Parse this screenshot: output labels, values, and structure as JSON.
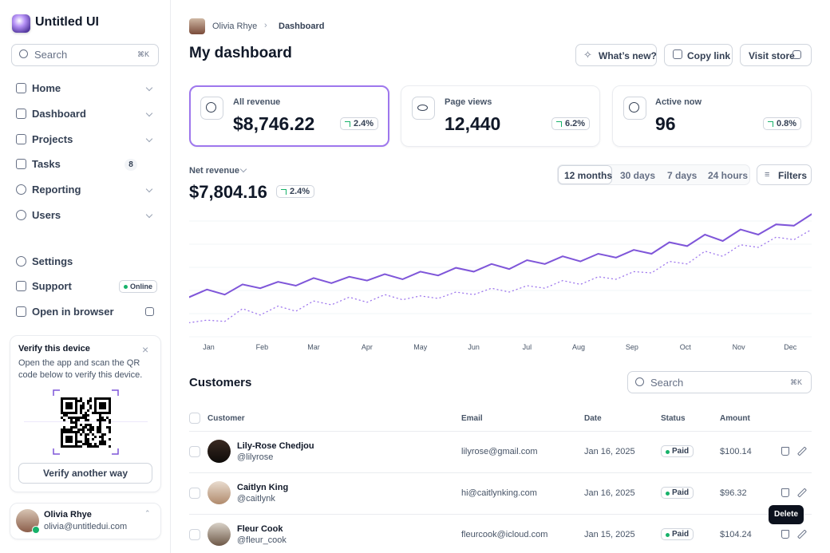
{
  "sidebar": {
    "brand": "Untitled UI",
    "search": {
      "placeholder": "Search",
      "shortcut": "⌘K"
    },
    "nav": [
      {
        "label": "Home"
      },
      {
        "label": "Dashboard"
      },
      {
        "label": "Projects"
      },
      {
        "label": "Tasks",
        "badge": "8"
      },
      {
        "label": "Reporting"
      },
      {
        "label": "Users"
      }
    ],
    "footer_nav": [
      {
        "label": "Settings"
      },
      {
        "label": "Support",
        "badge": "Online"
      },
      {
        "label": "Open in browser"
      }
    ],
    "verify_card": {
      "title": "Verify this device",
      "text": "Open the app and scan the QR code below to verify this device.",
      "button": "Verify another way"
    },
    "user": {
      "name": "Olivia Rhye",
      "email": "olivia@untitledui.com"
    }
  },
  "header": {
    "breadcrumb": [
      "Olivia Rhye",
      "Dashboard"
    ],
    "title": "My dashboard",
    "actions": [
      "What’s new?",
      "Copy link",
      "Visit store"
    ]
  },
  "stats": [
    {
      "label": "All revenue",
      "value": "$8,746.22",
      "change": "2.4%"
    },
    {
      "label": "Page views",
      "value": "12,440",
      "change": "6.2%"
    },
    {
      "label": "Active now",
      "value": "96",
      "change": "0.8%"
    }
  ],
  "revenue": {
    "label": "Net revenue",
    "value": "$7,804.16",
    "change": "2.4%",
    "ranges": [
      "12 months",
      "30 days",
      "7 days",
      "24 hours"
    ],
    "filters": "Filters"
  },
  "chart_data": {
    "type": "line",
    "x": [
      0,
      1,
      2,
      3,
      4,
      5,
      6,
      7,
      8,
      9,
      10,
      11,
      12,
      13,
      14,
      15,
      16,
      17,
      18,
      19,
      20,
      21,
      22,
      23,
      24,
      25,
      26,
      27,
      28,
      29,
      30,
      31,
      32,
      33,
      34,
      35
    ],
    "xlim": [
      0,
      35
    ],
    "xticks": [
      {
        "value": 1.1,
        "label": "Jan"
      },
      {
        "value": 4.1,
        "label": "Feb"
      },
      {
        "value": 7.0,
        "label": "Mar"
      },
      {
        "value": 10.0,
        "label": "Apr"
      },
      {
        "value": 13.0,
        "label": "May"
      },
      {
        "value": 16.0,
        "label": "Jun"
      },
      {
        "value": 19.0,
        "label": "Jul"
      },
      {
        "value": 21.9,
        "label": "Aug"
      },
      {
        "value": 24.9,
        "label": "Sep"
      },
      {
        "value": 27.9,
        "label": "Oct"
      },
      {
        "value": 30.9,
        "label": "Nov"
      },
      {
        "value": 33.8,
        "label": "Dec"
      }
    ],
    "ylim": [
      0,
      100
    ],
    "grid": true,
    "series": [
      {
        "color": "#7f56d9",
        "style": "solid",
        "values": [
          31,
          37,
          33,
          41,
          38,
          43,
          40,
          46,
          42,
          47,
          44,
          49,
          45,
          51,
          48,
          54,
          51,
          57,
          53,
          60,
          57,
          63,
          59,
          65,
          62,
          68,
          65,
          74,
          71,
          80,
          75,
          84,
          80,
          88,
          87,
          96
        ]
      },
      {
        "color": "#9e77ed",
        "style": "dotted",
        "values": [
          11,
          13,
          12,
          22,
          17,
          24,
          20,
          28,
          25,
          31,
          27,
          33,
          29,
          32,
          30,
          35,
          33,
          38,
          35,
          40,
          38,
          44,
          41,
          47,
          45,
          51,
          50,
          59,
          57,
          67,
          63,
          72,
          70,
          78,
          76,
          84
        ]
      }
    ]
  },
  "customers": {
    "title": "Customers",
    "search": {
      "placeholder": "Search",
      "shortcut": "⌘K"
    },
    "columns": [
      "Customer",
      "Email",
      "Date",
      "Status",
      "Amount"
    ],
    "rows": [
      {
        "name": "Lily-Rose Chedjou",
        "handle": "@lilyrose",
        "email": "lilyrose@gmail.com",
        "date": "Jan 16, 2025",
        "status": "Paid",
        "amount": "$100.14"
      },
      {
        "name": "Caitlyn King",
        "handle": "@caitlynk",
        "email": "hi@caitlynking.com",
        "date": "Jan 16, 2025",
        "status": "Paid",
        "amount": "$96.32"
      },
      {
        "name": "Fleur Cook",
        "handle": "@fleur_cook",
        "email": "fleurcook@icloud.com",
        "date": "Jan 15, 2025",
        "status": "Paid",
        "amount": "$104.24"
      }
    ]
  },
  "tooltip": "Delete"
}
